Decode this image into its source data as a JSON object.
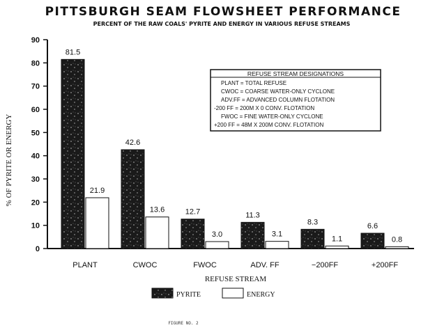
{
  "chart_data": {
    "type": "bar",
    "title": "PITTSBURGH SEAM FLOWSHEET PERFORMANCE",
    "subtitle": "PERCENT OF THE RAW COALS' PYRITE AND ENERGY IN VARIOUS REFUSE STREAMS",
    "xlabel": "REFUSE STREAM",
    "ylabel": "% OF PYRITE OR ENERGY",
    "ylim": [
      0,
      90
    ],
    "yticks": [
      "0",
      "10",
      "20",
      "30",
      "40",
      "50",
      "60",
      "70",
      "80",
      "90"
    ],
    "categories": [
      "PLANT",
      "CWOC",
      "FWOC",
      "ADV. FF",
      "−200FF",
      "+200FF"
    ],
    "series": [
      {
        "name": "PYRITE",
        "values": [
          81.5,
          42.6,
          12.7,
          11.3,
          8.3,
          6.6
        ],
        "labels": [
          "81.5",
          "42.6",
          "12.7",
          "11.3",
          "8.3",
          "6.6"
        ],
        "color": "#1a1a1a"
      },
      {
        "name": "ENERGY",
        "values": [
          21.9,
          13.6,
          3.0,
          3.1,
          1.1,
          0.8
        ],
        "labels": [
          "21.9",
          "13.6",
          "3.0",
          "3.1",
          "1.1",
          "0.8"
        ],
        "color": "#ffffff"
      }
    ],
    "grid": false,
    "legend_position": "bottom",
    "inset_box": {
      "title": "REFUSE STREAM DESIGNATIONS",
      "lines": [
        "PLANT = TOTAL REFUSE",
        "CWOC = COARSE WATER-ONLY CYCLONE",
        "ADV.FF = ADVANCED COLUMN FLOTATION",
        "-200 FF = 200M X 0 CONV. FLOTATION",
        "FWOC = FINE WATER-ONLY CYCLONE",
        "+200 FF = 48M X 200M CONV. FLOTATION"
      ]
    }
  },
  "footer": {
    "caption": "FIGURE NO. 2"
  }
}
